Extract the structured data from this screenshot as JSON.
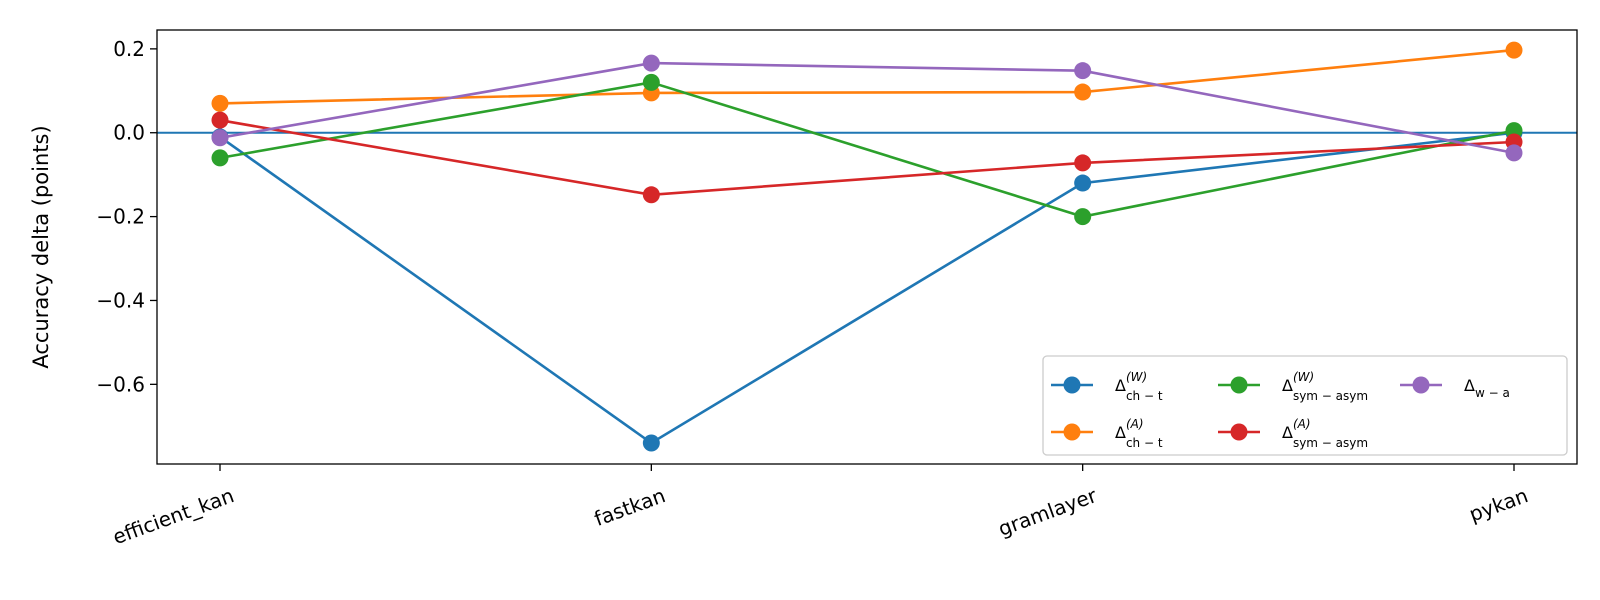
{
  "chart_data": {
    "type": "line",
    "categories": [
      "efficient_kan",
      "fastkan",
      "gramlayer",
      "pykan"
    ],
    "ylabel": "Accuracy delta (points)",
    "xlabel": "",
    "title": "",
    "ylim": [
      -0.79,
      0.245
    ],
    "yticks": [
      0.2,
      0.0,
      -0.2,
      -0.4,
      -0.6
    ],
    "ytick_labels": [
      "0.2",
      "0.0",
      "−0.2",
      "−0.4",
      "−0.6"
    ],
    "reference_line": {
      "y": 0.0,
      "color": "#1f77b4"
    },
    "grid": false,
    "legend": {
      "placement": "lower-right",
      "columns": 3
    },
    "series": [
      {
        "name": "Δ",
        "sup": "(W)",
        "sub": "ch − t",
        "color": "#1f77b4",
        "values": [
          -0.01,
          -0.74,
          -0.12,
          0.0
        ]
      },
      {
        "name": "Δ",
        "sup": "(A)",
        "sub": "ch − t",
        "color": "#ff7f0e",
        "values": [
          0.07,
          0.095,
          0.097,
          0.197
        ]
      },
      {
        "name": "Δ",
        "sup": "(W)",
        "sub": "sym − asym",
        "color": "#2ca02c",
        "values": [
          -0.06,
          0.12,
          -0.2,
          0.005
        ]
      },
      {
        "name": "Δ",
        "sup": "(A)",
        "sub": "sym − asym",
        "color": "#d62728",
        "values": [
          0.03,
          -0.148,
          -0.072,
          -0.022
        ]
      },
      {
        "name": "Δ",
        "sup": "",
        "sub": "w − a",
        "color": "#9467bd",
        "values": [
          -0.012,
          0.166,
          0.148,
          -0.048
        ]
      }
    ]
  }
}
